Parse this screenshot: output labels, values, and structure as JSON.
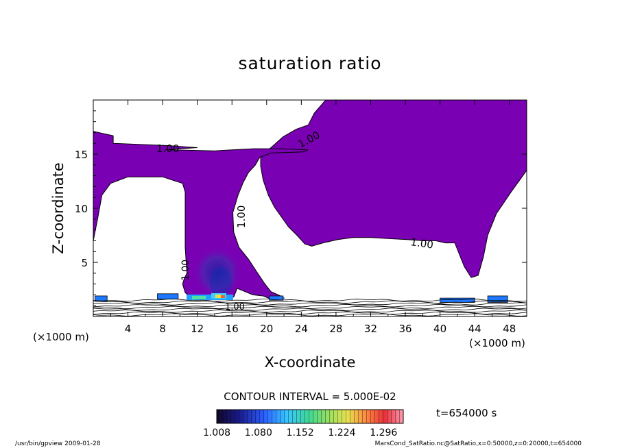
{
  "chart_data": {
    "type": "contour",
    "title": "saturation ratio",
    "xlabel": "X-coordinate",
    "ylabel": "Z-coordinate",
    "x_unit": "(×1000 m)",
    "y_unit": "(×1000 m)",
    "xlim": [
      0,
      50
    ],
    "ylim": [
      0,
      20
    ],
    "x_ticks": [
      "4",
      "8",
      "12",
      "16",
      "20",
      "24",
      "28",
      "32",
      "36",
      "40",
      "44",
      "48"
    ],
    "y_ticks": [
      "5",
      "10",
      "15"
    ],
    "contour_interval": "CONTOUR INTERVAL = 5.000E-02",
    "contour_labels": [
      "1.00",
      "1.00",
      "1.00",
      "1.00",
      "1.00",
      "1.00"
    ],
    "colorbar_labels": [
      "1.008",
      "1.080",
      "1.152",
      "1.224",
      "1.296"
    ],
    "colorbar_range": [
      1.008,
      1.33
    ],
    "time_label": "t=654000 s",
    "fill_color": "#7a00b4",
    "footer_left": "/usr/bin/gpview  2009-01-28",
    "footer_right": "MarsCond_SatRatio.nc@SatRatio,x=0:50000,z=0:20000,t=654000",
    "regions": [
      {
        "name": "upper-right-cloud",
        "points": [
          [
            26.8,
            20
          ],
          [
            50,
            20
          ],
          [
            50,
            13.5
          ],
          [
            48.2,
            11.5
          ],
          [
            46.5,
            9.5
          ],
          [
            45.5,
            7.5
          ],
          [
            45,
            5.5
          ],
          [
            44.4,
            3.8
          ],
          [
            43.6,
            3.6
          ],
          [
            42.8,
            4.6
          ],
          [
            41.7,
            6.8
          ],
          [
            40.6,
            6.8
          ],
          [
            39.5,
            7
          ],
          [
            38,
            7
          ],
          [
            36.2,
            7.1
          ],
          [
            34,
            7.2
          ],
          [
            32,
            7.3
          ],
          [
            30,
            7.3
          ],
          [
            28.2,
            7.1
          ],
          [
            26.5,
            6.8
          ],
          [
            25.2,
            6.5
          ],
          [
            24.4,
            6.7
          ],
          [
            23.5,
            7.5
          ],
          [
            22.5,
            8.3
          ],
          [
            21.7,
            9.2
          ],
          [
            20.9,
            10.1
          ],
          [
            20.2,
            11.2
          ],
          [
            19.6,
            12.6
          ],
          [
            19.3,
            13.9
          ],
          [
            19.3,
            14.9
          ],
          [
            20.5,
            15.6
          ],
          [
            21.9,
            16.6
          ],
          [
            23.4,
            17.3
          ],
          [
            24.8,
            17.7
          ],
          [
            25.5,
            18.8
          ]
        ]
      },
      {
        "name": "cloud-band",
        "points": [
          [
            0,
            15.2
          ],
          [
            0,
            17.1
          ],
          [
            2.3,
            16.7
          ],
          [
            2.3,
            16
          ],
          [
            8.4,
            15.8
          ],
          [
            12,
            15.6
          ],
          [
            8.3,
            15.4
          ],
          [
            8.8,
            15.4
          ],
          [
            14,
            15.3
          ],
          [
            16,
            15.4
          ],
          [
            18.5,
            15.5
          ],
          [
            21.5,
            15.5
          ],
          [
            24.8,
            15.4
          ],
          [
            24.2,
            15.2
          ],
          [
            20.5,
            15.1
          ],
          [
            19.2,
            14.7
          ],
          [
            18.7,
            14
          ],
          [
            17.9,
            13.3
          ],
          [
            17.3,
            12.4
          ],
          [
            16.7,
            11.2
          ],
          [
            16.1,
            9.6
          ],
          [
            16.2,
            7.8
          ],
          [
            16.8,
            6.4
          ],
          [
            17.9,
            5.3
          ],
          [
            18.8,
            4.2
          ],
          [
            19.8,
            3
          ],
          [
            20.5,
            2.3
          ],
          [
            21.6,
            1.9
          ],
          [
            22,
            1.7
          ],
          [
            20.5,
            1.6
          ],
          [
            19.6,
            1.9
          ],
          [
            18.4,
            2
          ],
          [
            17.5,
            2.3
          ],
          [
            16.6,
            2.6
          ],
          [
            16.2,
            1.8
          ],
          [
            14,
            1.8
          ],
          [
            11.2,
            1.8
          ],
          [
            10.6,
            2.2
          ],
          [
            10.3,
            3
          ],
          [
            10.5,
            3.5
          ],
          [
            10.8,
            4
          ],
          [
            10.6,
            6.4
          ],
          [
            10.6,
            9
          ],
          [
            10.6,
            11.5
          ],
          [
            10.3,
            12.3
          ],
          [
            8,
            12.9
          ],
          [
            4,
            12.9
          ],
          [
            2,
            12.3
          ],
          [
            1,
            11.2
          ],
          [
            0.5,
            9
          ],
          [
            0,
            7
          ]
        ]
      }
    ],
    "blue_patches": [
      {
        "x": 0.2,
        "y": 1.4,
        "w": 1.4,
        "h": 0.5
      },
      {
        "x": 7.4,
        "y": 1.6,
        "w": 2.4,
        "h": 0.5
      },
      {
        "x": 40,
        "y": 1.3,
        "w": 4,
        "h": 0.4
      },
      {
        "x": 45.5,
        "y": 1.3,
        "w": 2.3,
        "h": 0.6
      },
      {
        "x": 20.3,
        "y": 1.5,
        "w": 1.6,
        "h": 0.4
      }
    ]
  }
}
